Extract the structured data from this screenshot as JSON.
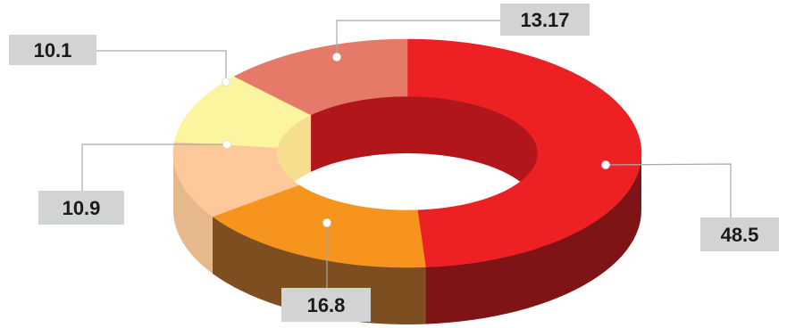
{
  "chart_data": {
    "type": "pie",
    "variant": "3d-donut",
    "title": "",
    "legend": "none",
    "slices": [
      {
        "label": "48.5",
        "value": 48.5,
        "top": "#ED2124",
        "side": "#7E1416",
        "inner": "#B1171A"
      },
      {
        "label": "16.8",
        "value": 16.8,
        "top": "#F7941D",
        "side": "#7D4E1F",
        "inner": "#F7941D"
      },
      {
        "label": "10.9",
        "value": 10.9,
        "top": "#FDC99A",
        "side": "#E6B98D",
        "inner": "#F5DECB"
      },
      {
        "label": "10.1",
        "value": 10.1,
        "top": "#FCF5A0",
        "side": "#E8DB7E",
        "inner": "#F6DE8E"
      },
      {
        "label": "13.17",
        "value": 13.17,
        "top": "#E47A67",
        "side": "#A8453A",
        "inner": "#B1171A"
      }
    ]
  }
}
